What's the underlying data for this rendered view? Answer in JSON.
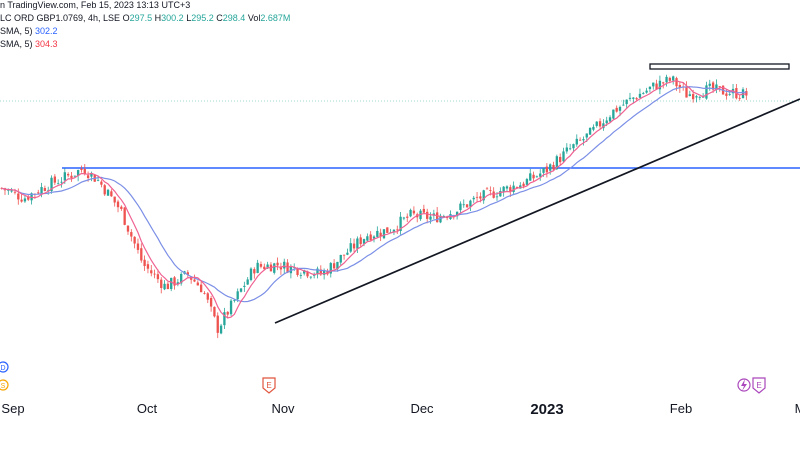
{
  "legend": {
    "source": "n TradingView.com, Feb 15, 2023 13:13 UTC+3",
    "symbol": "LC ORD GBP1.0769, 4h, LSE",
    "o_label": "O",
    "o_value": "297.5",
    "h_label": "H",
    "h_value": "300.2",
    "l_label": "L",
    "l_value": "295.2",
    "c_label": "C",
    "c_value": "298.4",
    "vol_label": "Vol",
    "vol_value": "2.687M",
    "ma1_label": "SMA, 5)",
    "ma1_value": "302.2",
    "ma2_label": "SMA, 5)",
    "ma2_value": "304.3"
  },
  "colors": {
    "up": "#26a69a",
    "down": "#ef5350",
    "ma_fast": "#f06292",
    "ma_slow": "#7b8fe6",
    "support_line": "#2962ff",
    "trendline": "#131722"
  },
  "chart_data": {
    "type": "candlestick",
    "x_ticks": [
      "Sep",
      "Oct",
      "Nov",
      "Dec",
      "2023",
      "Feb"
    ],
    "ylim": [
      220,
      345
    ],
    "horizontal_level": 300.3,
    "resistance_zone": [
      336.5,
      338
    ],
    "trendline": {
      "start": [
        "Oct 31",
        250
      ],
      "end": [
        "Feb 28",
        325
      ]
    },
    "close_path": [
      [
        0,
        293
      ],
      [
        0.03,
        289
      ],
      [
        0.06,
        294
      ],
      [
        0.09,
        298
      ],
      [
        0.11,
        301
      ],
      [
        0.13,
        296
      ],
      [
        0.16,
        284
      ],
      [
        0.19,
        262
      ],
      [
        0.22,
        253
      ],
      [
        0.25,
        258
      ],
      [
        0.27,
        252
      ],
      [
        0.29,
        236
      ],
      [
        0.31,
        246
      ],
      [
        0.34,
        261
      ],
      [
        0.37,
        262
      ],
      [
        0.4,
        260
      ],
      [
        0.43,
        258
      ],
      [
        0.46,
        266
      ],
      [
        0.49,
        274
      ],
      [
        0.52,
        276
      ],
      [
        0.55,
        282
      ],
      [
        0.58,
        281
      ],
      [
        0.61,
        284
      ],
      [
        0.64,
        289
      ],
      [
        0.67,
        292
      ],
      [
        0.7,
        295
      ],
      [
        0.73,
        300
      ],
      [
        0.76,
        308
      ],
      [
        0.79,
        315
      ],
      [
        0.82,
        324
      ],
      [
        0.85,
        330
      ],
      [
        0.88,
        335
      ],
      [
        0.9,
        337
      ],
      [
        0.92,
        331
      ],
      [
        0.95,
        333
      ],
      [
        1.0,
        331
      ]
    ],
    "markers": [
      "dividend",
      "earnings",
      "earnings"
    ]
  }
}
